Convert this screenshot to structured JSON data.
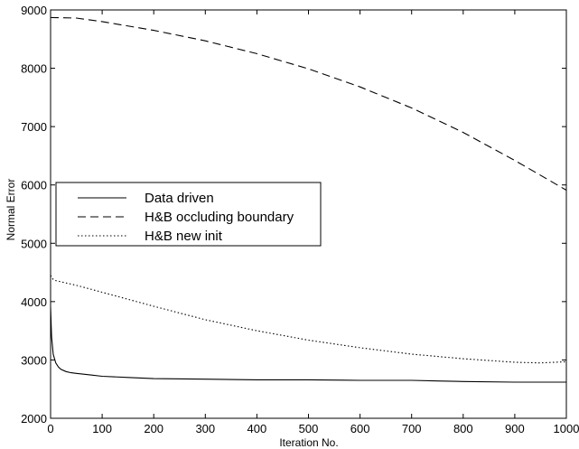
{
  "chart_data": {
    "type": "line",
    "title": "",
    "xlabel": "Iteration No.",
    "ylabel": "Normal Error",
    "xlim": [
      0,
      1000
    ],
    "ylim": [
      2000,
      9000
    ],
    "xticks": [
      0,
      100,
      200,
      300,
      400,
      500,
      600,
      700,
      800,
      900,
      1000
    ],
    "yticks": [
      2000,
      3000,
      4000,
      5000,
      6000,
      7000,
      8000,
      9000
    ],
    "grid": false,
    "legend_position": "center-left",
    "series": [
      {
        "name": "Data driven",
        "style": "solid",
        "color": "#000000",
        "x": [
          0,
          2,
          5,
          10,
          15,
          20,
          30,
          40,
          50,
          60,
          80,
          100,
          150,
          200,
          300,
          400,
          500,
          600,
          700,
          750,
          800,
          900,
          1000
        ],
        "y": [
          3900,
          3400,
          3100,
          2950,
          2880,
          2840,
          2800,
          2780,
          2770,
          2760,
          2740,
          2720,
          2700,
          2680,
          2670,
          2660,
          2660,
          2650,
          2650,
          2640,
          2630,
          2620,
          2620
        ]
      },
      {
        "name": "H&B occluding boundary",
        "style": "dashed",
        "color": "#000000",
        "x": [
          0,
          50,
          100,
          200,
          300,
          400,
          500,
          600,
          700,
          800,
          900,
          1000
        ],
        "y": [
          8870,
          8860,
          8800,
          8650,
          8470,
          8250,
          7990,
          7680,
          7320,
          6900,
          6420,
          5910
        ]
      },
      {
        "name": "H&B new init",
        "style": "dotted",
        "color": "#000000",
        "x": [
          0,
          5,
          10,
          20,
          50,
          100,
          200,
          300,
          400,
          500,
          600,
          700,
          800,
          900,
          950,
          1000
        ],
        "y": [
          4450,
          4380,
          4360,
          4340,
          4280,
          4160,
          3920,
          3690,
          3500,
          3340,
          3210,
          3100,
          3020,
          2960,
          2950,
          2970
        ]
      }
    ]
  }
}
